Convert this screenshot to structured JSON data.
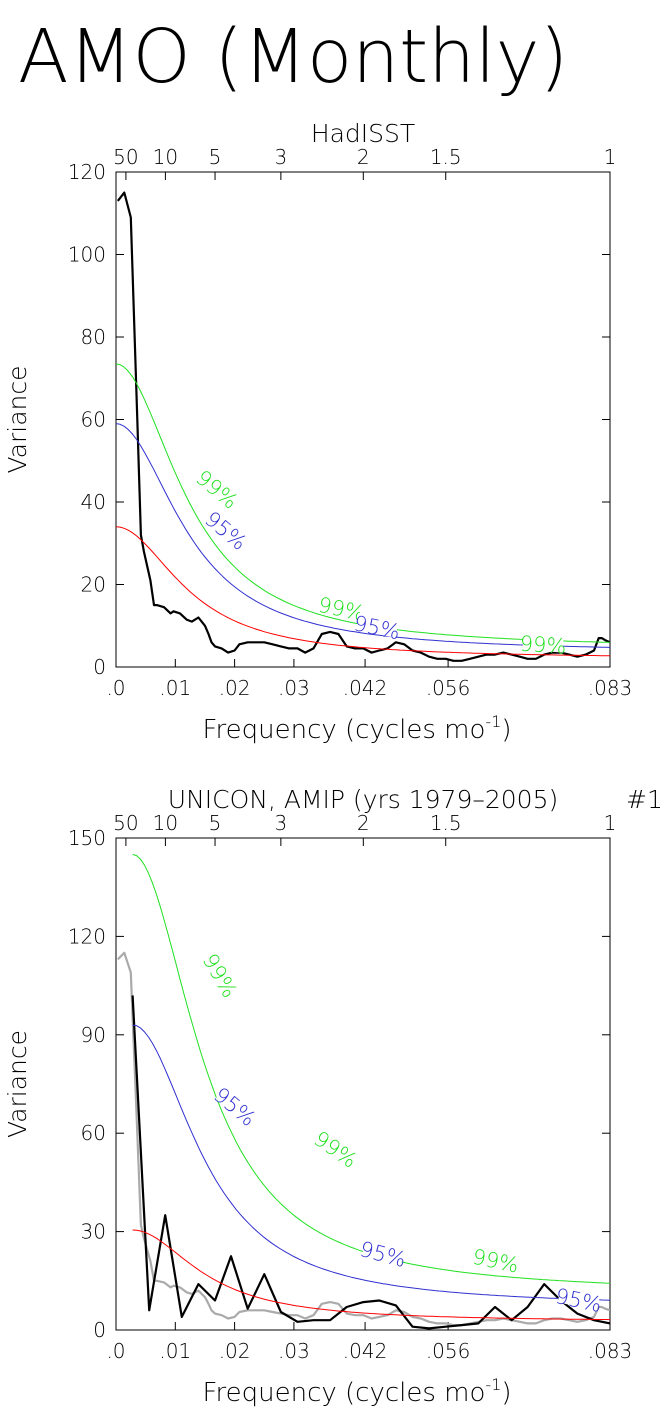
{
  "page_title": "AMO (Monthly)",
  "chart_data": [
    {
      "type": "line",
      "title": "HadISST",
      "title_right": "",
      "xlabel": "Frequency (cycles mo",
      "xlabel_sup": "-1",
      "xlabel_close": ")",
      "ylabel": "Variance",
      "xlim": [
        0,
        0.0833
      ],
      "ylim": [
        0,
        120
      ],
      "yticks": [
        0,
        20,
        40,
        60,
        80,
        100,
        120
      ],
      "xticks": [
        {
          "v": 0.0,
          "label": ".0"
        },
        {
          "v": 0.01,
          "label": ".01"
        },
        {
          "v": 0.02,
          "label": ".02"
        },
        {
          "v": 0.03,
          "label": ".03"
        },
        {
          "v": 0.042,
          "label": ".042"
        },
        {
          "v": 0.056,
          "label": ".056"
        },
        {
          "v": 0.0833,
          "label": ".083"
        }
      ],
      "period_ticks": [
        {
          "v": 0.00167,
          "label": "50"
        },
        {
          "v": 0.00833,
          "label": "10"
        },
        {
          "v": 0.0167,
          "label": "5"
        },
        {
          "v": 0.0278,
          "label": "3"
        },
        {
          "v": 0.0417,
          "label": "2"
        },
        {
          "v": 0.0556,
          "label": "1.5"
        },
        {
          "v": 0.0833,
          "label": "1"
        }
      ],
      "series": [
        {
          "color": "#000000",
          "width": 2.2,
          "x": [
            0.0003,
            0.0014,
            0.0025,
            0.0036,
            0.0042,
            0.0047,
            0.0058,
            0.0064,
            0.0069,
            0.0081,
            0.0092,
            0.0097,
            0.0108,
            0.0119,
            0.0128,
            0.0139,
            0.015,
            0.0156,
            0.0161,
            0.0167,
            0.0178,
            0.0189,
            0.02,
            0.0208,
            0.0222,
            0.0236,
            0.025,
            0.0264,
            0.0278,
            0.0292,
            0.0306,
            0.0319,
            0.0333,
            0.0347,
            0.0361,
            0.0375,
            0.0389,
            0.0403,
            0.0417,
            0.0431,
            0.0444,
            0.0458,
            0.0472,
            0.0486,
            0.05,
            0.0514,
            0.0528,
            0.0542,
            0.0556,
            0.0569,
            0.0583,
            0.0597,
            0.0611,
            0.0625,
            0.0639,
            0.0653,
            0.0667,
            0.0681,
            0.0694,
            0.0708,
            0.0722,
            0.0736,
            0.075,
            0.0764,
            0.0778,
            0.0792,
            0.0806,
            0.0814,
            0.0819,
            0.0825,
            0.0833
          ],
          "y": [
            113,
            115,
            109,
            60,
            32,
            28,
            21,
            15,
            15,
            14.5,
            13,
            13.5,
            13,
            11.5,
            11,
            12,
            10,
            8,
            6,
            5,
            4.5,
            3.5,
            4,
            5.5,
            6,
            6,
            6,
            5.5,
            5,
            4.5,
            4.5,
            3.5,
            4.5,
            8,
            8.5,
            8,
            5,
            4.5,
            4.5,
            3.5,
            4,
            4.5,
            6,
            5.5,
            4,
            3.5,
            2.5,
            2,
            2,
            1.5,
            1.5,
            2,
            2.5,
            3,
            3,
            3.5,
            3,
            2.5,
            2,
            2,
            3,
            3.5,
            3.5,
            3,
            2.5,
            3,
            4,
            7,
            7,
            6.5,
            6
          ]
        },
        {
          "color": "#ff0000",
          "width": 1,
          "kind": "red_noise",
          "y0": 34,
          "tail": 2
        },
        {
          "color": "#3030d0",
          "width": 1,
          "kind": "red_noise",
          "y0": 59,
          "tail": 3.5
        },
        {
          "color": "#20e020",
          "width": 1,
          "kind": "red_noise",
          "y0": 73.5,
          "tail": 4.4
        }
      ],
      "annotations": [
        {
          "text": "99%",
          "color": "#20e020",
          "x": 0.017,
          "y": 43,
          "rot": 40
        },
        {
          "text": "95%",
          "color": "#3030d0",
          "x": 0.0185,
          "y": 33,
          "rot": 40
        },
        {
          "text": "99%",
          "color": "#20e020",
          "x": 0.038,
          "y": 14,
          "rot": 12
        },
        {
          "text": "95%",
          "color": "#3030d0",
          "x": 0.044,
          "y": 9.5,
          "rot": 12
        },
        {
          "text": "99%",
          "color": "#20e020",
          "x": 0.072,
          "y": 5.3,
          "rot": 4
        }
      ]
    },
    {
      "type": "line",
      "title": "UNICON, AMIP (yrs 1979–2005)",
      "title_right": "#1",
      "xlabel": "Frequency (cycles mo",
      "xlabel_sup": "-1",
      "xlabel_close": ")",
      "ylabel": "Variance",
      "xlim": [
        0,
        0.0833
      ],
      "ylim": [
        0,
        150
      ],
      "yticks": [
        0,
        30,
        60,
        90,
        120,
        150
      ],
      "xticks": [
        {
          "v": 0.0,
          "label": ".0"
        },
        {
          "v": 0.01,
          "label": ".01"
        },
        {
          "v": 0.02,
          "label": ".02"
        },
        {
          "v": 0.03,
          "label": ".03"
        },
        {
          "v": 0.042,
          "label": ".042"
        },
        {
          "v": 0.056,
          "label": ".056"
        },
        {
          "v": 0.0833,
          "label": ".083"
        }
      ],
      "period_ticks": [
        {
          "v": 0.00167,
          "label": "50"
        },
        {
          "v": 0.00833,
          "label": "10"
        },
        {
          "v": 0.0167,
          "label": "5"
        },
        {
          "v": 0.0278,
          "label": "3"
        },
        {
          "v": 0.0417,
          "label": "2"
        },
        {
          "v": 0.0556,
          "label": "1.5"
        },
        {
          "v": 0.0833,
          "label": "1"
        }
      ],
      "series": [
        {
          "color": "#aaaaaa",
          "width": 2.2,
          "x": [
            0.0003,
            0.0014,
            0.0025,
            0.0036,
            0.0042,
            0.0047,
            0.0058,
            0.0064,
            0.0069,
            0.0081,
            0.0092,
            0.0097,
            0.0108,
            0.0119,
            0.0128,
            0.0139,
            0.015,
            0.0156,
            0.0161,
            0.0167,
            0.0178,
            0.0189,
            0.02,
            0.0208,
            0.0222,
            0.0236,
            0.025,
            0.0264,
            0.0278,
            0.0292,
            0.0306,
            0.0319,
            0.0333,
            0.0347,
            0.0361,
            0.0375,
            0.0389,
            0.0403,
            0.0417,
            0.0431,
            0.0444,
            0.0458,
            0.0472,
            0.0486,
            0.05,
            0.0514,
            0.0528,
            0.0542,
            0.0556,
            0.0569,
            0.0583,
            0.0597,
            0.0611,
            0.0625,
            0.0639,
            0.0653,
            0.0667,
            0.0681,
            0.0694,
            0.0708,
            0.0722,
            0.0736,
            0.075,
            0.0764,
            0.0778,
            0.0792,
            0.0806,
            0.0814,
            0.0819,
            0.0825,
            0.0833
          ],
          "y": [
            113,
            115,
            109,
            60,
            32,
            28,
            21,
            15,
            15,
            14.5,
            13,
            13.5,
            13,
            11.5,
            11,
            12,
            10,
            8,
            6,
            5,
            4.5,
            3.5,
            4,
            5.5,
            6,
            6,
            6,
            5.5,
            5,
            4.5,
            4.5,
            3.5,
            4.5,
            8,
            8.5,
            8,
            5,
            4.5,
            4.5,
            3.5,
            4,
            4.5,
            6,
            5.5,
            4,
            3.5,
            2.5,
            2,
            2,
            1.5,
            1.5,
            2,
            2.5,
            3,
            3,
            3.5,
            3,
            2.5,
            2,
            2,
            3,
            3.5,
            3.5,
            3,
            2.5,
            3,
            4,
            7,
            7,
            6.5,
            6
          ]
        },
        {
          "color": "#000000",
          "width": 2.2,
          "x": [
            0.0028,
            0.0056,
            0.0083,
            0.0111,
            0.0139,
            0.0167,
            0.0194,
            0.0222,
            0.025,
            0.0278,
            0.0306,
            0.0333,
            0.0361,
            0.0389,
            0.0417,
            0.0444,
            0.0472,
            0.05,
            0.0528,
            0.0556,
            0.0583,
            0.0611,
            0.0639,
            0.0667,
            0.0694,
            0.0722,
            0.075,
            0.0778,
            0.0806,
            0.0833
          ],
          "y": [
            102,
            6,
            35,
            4,
            14,
            9,
            22.5,
            6.5,
            17,
            5.5,
            2.5,
            3,
            3,
            7,
            8.5,
            9,
            7.5,
            1,
            0.5,
            1,
            1.5,
            2,
            7,
            3,
            7,
            14,
            9,
            5,
            3,
            2
          ]
        },
        {
          "color": "#ff0000",
          "width": 1,
          "kind": "red_noise",
          "y0": 30.5,
          "tail": 2.5,
          "x0": 0.0028
        },
        {
          "color": "#3030d0",
          "width": 1,
          "kind": "red_noise",
          "y0": 93,
          "tail": 7,
          "x0": 0.0028
        },
        {
          "color": "#20e020",
          "width": 1,
          "kind": "red_noise",
          "y0": 145,
          "tail": 11,
          "x0": 0.0028
        }
      ],
      "annotations": [
        {
          "text": "99%",
          "color": "#20e020",
          "x": 0.0175,
          "y": 108,
          "rot": 60
        },
        {
          "text": "95%",
          "color": "#3030d0",
          "x": 0.02,
          "y": 68,
          "rot": 40
        },
        {
          "text": "99%",
          "color": "#20e020",
          "x": 0.037,
          "y": 55,
          "rot": 35
        },
        {
          "text": "95%",
          "color": "#3030d0",
          "x": 0.045,
          "y": 23,
          "rot": 15
        },
        {
          "text": "99%",
          "color": "#20e020",
          "x": 0.064,
          "y": 21,
          "rot": 12
        },
        {
          "text": "95%",
          "color": "#3030d0",
          "x": 0.078,
          "y": 9,
          "rot": 12
        }
      ]
    }
  ]
}
